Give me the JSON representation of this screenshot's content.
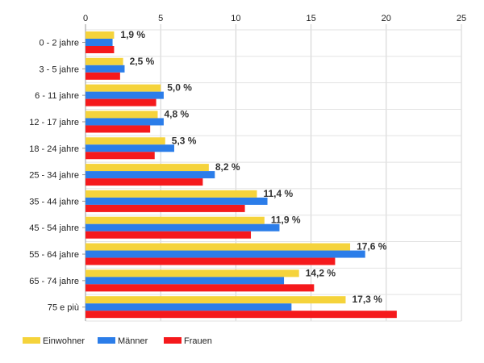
{
  "chart_data": {
    "type": "bar",
    "orientation": "horizontal",
    "categories": [
      "0 - 2 jahre",
      "3 - 5 jahre",
      "6 - 11 jahre",
      "12 - 17 jahre",
      "18 - 24 jahre",
      "25 - 34 jahre",
      "35 - 44 jahre",
      "45 - 54 jahre",
      "55 - 64 jahre",
      "65 - 74 jahre",
      "75 e più"
    ],
    "series": [
      {
        "name": "Einwohner",
        "color": "#f5d33b",
        "values": [
          1.9,
          2.5,
          5.0,
          4.8,
          5.3,
          8.2,
          11.4,
          11.9,
          17.6,
          14.2,
          17.3
        ]
      },
      {
        "name": "Männer",
        "color": "#2b7de9",
        "values": [
          1.8,
          2.6,
          5.2,
          5.2,
          5.9,
          8.6,
          12.1,
          12.9,
          18.6,
          13.2,
          13.7
        ]
      },
      {
        "name": "Frauen",
        "color": "#f5191c",
        "values": [
          1.9,
          2.3,
          4.7,
          4.3,
          4.6,
          7.8,
          10.6,
          11.0,
          16.6,
          15.2,
          20.7
        ]
      }
    ],
    "data_labels": [
      "1,9 %",
      "2,5 %",
      "5,0 %",
      "4,8 %",
      "5,3 %",
      "8,2 %",
      "11,4 %",
      "11,9 %",
      "17,6 %",
      "14,2 %",
      "17,3 %"
    ],
    "xlim": [
      0,
      25
    ],
    "xticks": [
      0,
      5,
      10,
      15,
      20,
      25
    ],
    "xtick_labels": [
      "0",
      "5",
      "10",
      "15",
      "20",
      "25"
    ],
    "x_axis_position": "top",
    "grid": true,
    "legend_position": "bottom-left"
  }
}
